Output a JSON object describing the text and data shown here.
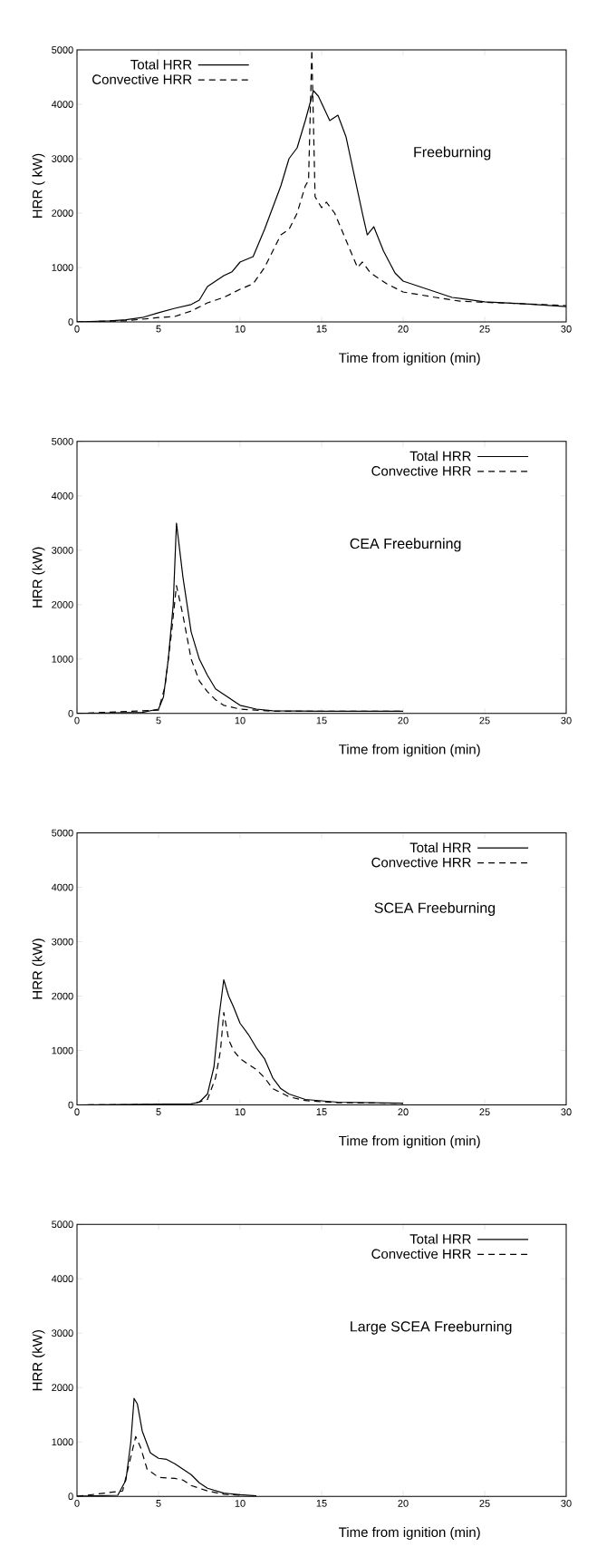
{
  "chart_data": [
    {
      "type": "line",
      "xlabel": "Time from ignition (min)",
      "ylabel": "HRR ( kW)",
      "xlim": [
        0,
        30
      ],
      "ylim": [
        0,
        5000
      ],
      "xticks": [
        0,
        5,
        10,
        15,
        20,
        25,
        30
      ],
      "yticks": [
        0,
        1000,
        2000,
        3000,
        4000,
        5000
      ],
      "legend": "top left",
      "grid": false,
      "annotations": [
        "Freeburning"
      ],
      "series": [
        {
          "name": "Total HRR",
          "color": "#000000",
          "line_style": "solid",
          "x": [
            0,
            2,
            3,
            4,
            5,
            6,
            7,
            7.5,
            8,
            9,
            9.5,
            10,
            10.8,
            11.5,
            12,
            12.5,
            13,
            13.5,
            14,
            14.5,
            14.8,
            15.5,
            16,
            16.5,
            17,
            17.5,
            17.8,
            18.2,
            18.8,
            19.5,
            20,
            21,
            22,
            23,
            25,
            27.5,
            30
          ],
          "values": [
            0,
            20,
            40,
            80,
            170,
            250,
            320,
            400,
            650,
            850,
            920,
            1100,
            1200,
            1700,
            2100,
            2500,
            3000,
            3200,
            3700,
            4250,
            4150,
            3700,
            3800,
            3400,
            2700,
            2000,
            1600,
            1750,
            1300,
            900,
            750,
            650,
            550,
            450,
            370,
            330,
            280
          ]
        },
        {
          "name": "Convective HRR",
          "color": "#000000",
          "line_style": "dashed",
          "x": [
            0,
            3,
            5,
            6,
            7,
            8,
            9,
            10,
            10.8,
            11.5,
            12,
            12.5,
            13,
            13.5,
            14,
            14.2,
            14.4,
            14.6,
            15,
            15.3,
            15.8,
            16.5,
            17.2,
            17.5,
            18,
            19,
            20,
            22,
            23.5,
            25,
            30
          ],
          "values": [
            0,
            20,
            80,
            100,
            200,
            350,
            450,
            600,
            700,
            1000,
            1300,
            1600,
            1700,
            2000,
            2500,
            2600,
            5000,
            2300,
            2100,
            2200,
            2000,
            1500,
            1000,
            1100,
            900,
            700,
            550,
            450,
            380,
            360,
            300
          ]
        }
      ]
    },
    {
      "type": "line",
      "xlabel": "Time from ignition (min)",
      "ylabel": "HRR (kW)",
      "xlim": [
        0,
        30
      ],
      "ylim": [
        0,
        5000
      ],
      "xticks": [
        0,
        5,
        10,
        15,
        20,
        25,
        30
      ],
      "yticks": [
        0,
        1000,
        2000,
        3000,
        4000,
        5000
      ],
      "legend": "top right",
      "grid": false,
      "annotations": [
        "CEA  Freeburning"
      ],
      "series": [
        {
          "name": "Total HRR",
          "color": "#000000",
          "line_style": "solid",
          "x": [
            0,
            4,
            5,
            5.3,
            5.6,
            5.9,
            6.1,
            6.5,
            7,
            7.5,
            8,
            8.5,
            9,
            10,
            11,
            12,
            15,
            20
          ],
          "values": [
            0,
            20,
            80,
            300,
            1000,
            2000,
            3500,
            2500,
            1500,
            1000,
            700,
            450,
            350,
            150,
            80,
            50,
            40,
            40
          ]
        },
        {
          "name": "Convective HRR",
          "color": "#000000",
          "line_style": "dashed",
          "x": [
            0,
            5,
            5.4,
            5.8,
            6.1,
            6.5,
            7,
            7.5,
            8,
            8.5,
            9,
            10,
            12,
            20
          ],
          "values": [
            0,
            60,
            500,
            1500,
            2350,
            1800,
            1000,
            600,
            400,
            250,
            150,
            80,
            40,
            40
          ]
        }
      ]
    },
    {
      "type": "line",
      "xlabel": "Time from ignition (min)",
      "ylabel": "HRR (kW)",
      "xlim": [
        0,
        30
      ],
      "ylim": [
        0,
        5000
      ],
      "xticks": [
        0,
        5,
        10,
        15,
        20,
        25,
        30
      ],
      "yticks": [
        0,
        1000,
        2000,
        3000,
        4000,
        5000
      ],
      "legend": "top right",
      "grid": false,
      "annotations": [
        "SCEA  Freeburning"
      ],
      "series": [
        {
          "name": "Total HRR",
          "color": "#000000",
          "line_style": "solid",
          "x": [
            0,
            7,
            7.5,
            8,
            8.4,
            8.7,
            9,
            9.3,
            9.6,
            10,
            10.5,
            11,
            11.5,
            12,
            12.5,
            13,
            14,
            16,
            20
          ],
          "values": [
            0,
            20,
            50,
            200,
            700,
            1600,
            2300,
            2000,
            1800,
            1500,
            1300,
            1050,
            850,
            500,
            300,
            200,
            100,
            50,
            30
          ]
        },
        {
          "name": "Convective HRR",
          "color": "#000000",
          "line_style": "dashed",
          "x": [
            0,
            7,
            8,
            8.5,
            8.8,
            9,
            9.3,
            9.6,
            10,
            11,
            11.5,
            12,
            13,
            14,
            16,
            20
          ],
          "values": [
            0,
            10,
            100,
            500,
            1000,
            1700,
            1200,
            1000,
            850,
            650,
            500,
            300,
            150,
            80,
            40,
            30
          ]
        }
      ]
    },
    {
      "type": "line",
      "xlabel": "Time from ignition (min)",
      "ylabel": "HRR  (kW)",
      "xlim": [
        0,
        30
      ],
      "ylim": [
        0,
        5000
      ],
      "xticks": [
        0,
        5,
        10,
        15,
        20,
        25,
        30
      ],
      "yticks": [
        0,
        1000,
        2000,
        3000,
        4000,
        5000
      ],
      "legend": "top right",
      "grid": false,
      "annotations": [
        "Large SCEA  Freeburning"
      ],
      "series": [
        {
          "name": "Total  HRR",
          "color": "#000000",
          "line_style": "solid",
          "x": [
            0,
            2.5,
            3,
            3.3,
            3.5,
            3.7,
            4,
            4.5,
            5,
            5.5,
            6,
            6.5,
            7,
            7.5,
            8,
            9,
            10,
            11
          ],
          "values": [
            0,
            20,
            300,
            1000,
            1800,
            1700,
            1200,
            800,
            700,
            680,
            600,
            500,
            400,
            250,
            150,
            60,
            30,
            10
          ]
        },
        {
          "name": "Convective HRR",
          "color": "#000000",
          "line_style": "dashed",
          "x": [
            0,
            2.8,
            3.2,
            3.6,
            3.9,
            4.3,
            5,
            6,
            6.5,
            7,
            8,
            9,
            10
          ],
          "values": [
            0,
            100,
            600,
            1100,
            900,
            500,
            350,
            330,
            300,
            200,
            100,
            40,
            20
          ]
        }
      ]
    }
  ]
}
